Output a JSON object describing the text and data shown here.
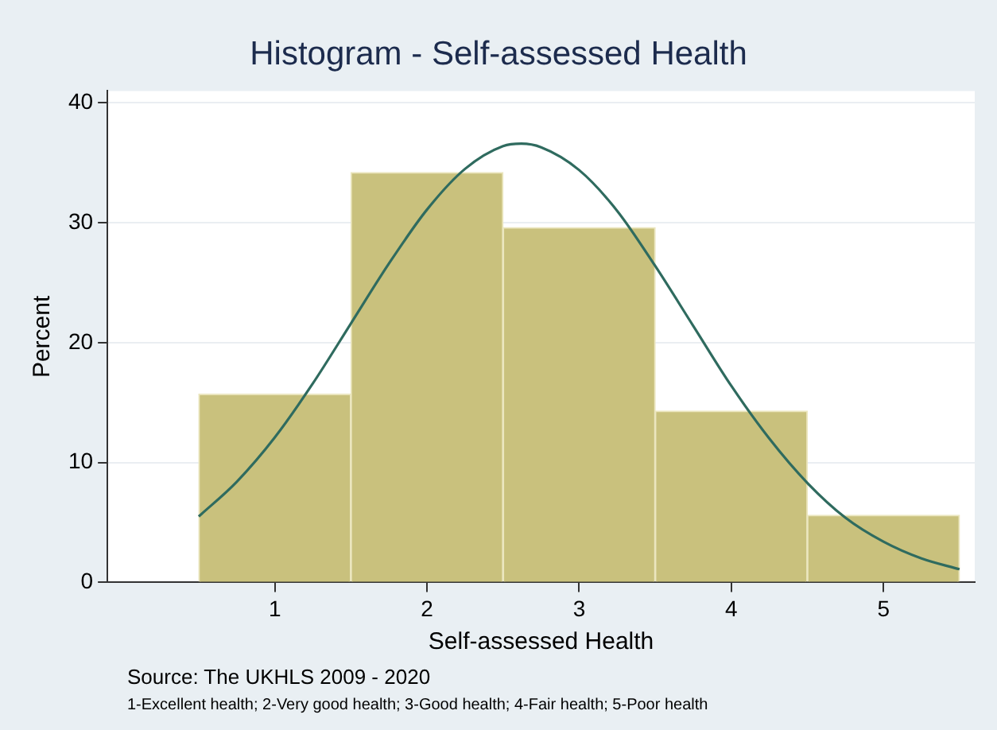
{
  "chart_data": {
    "type": "histogram",
    "title": "Histogram - Self-assessed Health",
    "xlabel": "Self-assessed Health",
    "ylabel": "Percent",
    "bins": [
      0.5,
      1.5,
      2.5,
      3.5,
      4.5,
      5.5
    ],
    "values": [
      15.7,
      34.2,
      29.6,
      14.3,
      5.6
    ],
    "color": "#c9c17d",
    "series": [
      {
        "type": "line",
        "color": "#2f6b5f",
        "x": [
          0.5,
          0.75,
          1.0,
          1.25,
          1.5,
          1.75,
          2.0,
          2.25,
          2.5,
          2.62,
          2.75,
          3.0,
          3.25,
          3.5,
          3.75,
          4.0,
          4.25,
          4.5,
          4.75,
          5.0,
          5.25,
          5.5
        ],
        "values": [
          5.5,
          8.4,
          12.1,
          16.6,
          21.6,
          26.6,
          31.1,
          34.5,
          36.4,
          36.6,
          36.3,
          34.4,
          31.0,
          26.4,
          21.4,
          16.4,
          12.0,
          8.3,
          5.4,
          3.4,
          2.0,
          1.1
        ]
      }
    ],
    "xlim": [
      -0.1,
      5.6
    ],
    "xticks": [
      1,
      2,
      3,
      4,
      5
    ],
    "ylim": [
      0,
      41
    ],
    "yticks": [
      0,
      10,
      20,
      30,
      40
    ],
    "grid": "y",
    "legend": false,
    "annotations": [
      "Source: The UKHLS 2009 - 2020",
      "1-Excellent health; 2-Very good health; 3-Good health; 4-Fair health; 5-Poor health"
    ]
  }
}
